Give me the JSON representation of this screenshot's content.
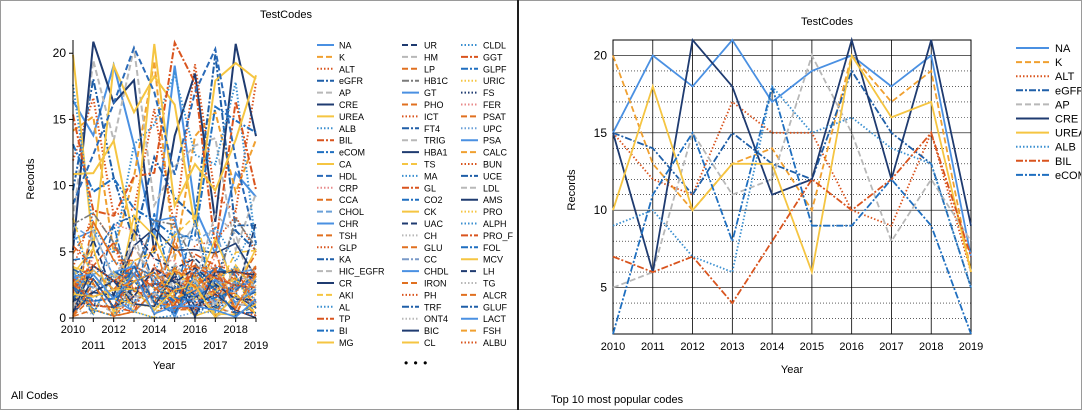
{
  "panels": {
    "left": {
      "caption": "All Codes",
      "more": "• • •"
    },
    "right": {
      "caption": "Top 10 most popular codes"
    }
  },
  "chart_data": [
    {
      "type": "line",
      "title": "TestCodes",
      "xlabel": "Year",
      "ylabel": "Records",
      "x": [
        2010,
        2011,
        2012,
        2013,
        2014,
        2015,
        2016,
        2017,
        2018,
        2019
      ],
      "ylim": [
        0,
        21
      ],
      "yticks": [
        0,
        5,
        10,
        15,
        20
      ],
      "grid": false,
      "legend_placement": "right",
      "legend": [
        {
          "name": "NA",
          "color": "#4a90e2",
          "dash": "solid"
        },
        {
          "name": "K",
          "color": "#f0a030",
          "dash": "dash"
        },
        {
          "name": "ALT",
          "color": "#d9541e",
          "dash": "dot"
        },
        {
          "name": "eGFR",
          "color": "#1f5fa8",
          "dash": "dashdot"
        },
        {
          "name": "AP",
          "color": "#b8b8b8",
          "dash": "dash"
        },
        {
          "name": "CRE",
          "color": "#1f3b70",
          "dash": "solid"
        },
        {
          "name": "UREA",
          "color": "#f5c542",
          "dash": "solid"
        },
        {
          "name": "ALB",
          "color": "#3a8fd0",
          "dash": "dot"
        },
        {
          "name": "BIL",
          "color": "#d9541e",
          "dash": "dashdot"
        },
        {
          "name": "eCOM",
          "color": "#1f6fc0",
          "dash": "dashdot"
        },
        {
          "name": "CA",
          "color": "#f5c542",
          "dash": "solid"
        },
        {
          "name": "HDL",
          "color": "#2a6ab8",
          "dash": "dash"
        },
        {
          "name": "CRP",
          "color": "#e88a8a",
          "dash": "dot"
        },
        {
          "name": "CCA",
          "color": "#e07020",
          "dash": "dash"
        },
        {
          "name": "CHOL",
          "color": "#6aa0d8",
          "dash": "dash"
        },
        {
          "name": "CHR",
          "color": "#4a90e2",
          "dash": "solid"
        },
        {
          "name": "TSH",
          "color": "#e07020",
          "dash": "dash"
        },
        {
          "name": "GLP",
          "color": "#d9541e",
          "dash": "dot"
        },
        {
          "name": "KA",
          "color": "#1f5fa8",
          "dash": "dashdot"
        },
        {
          "name": "HIC_EGFR",
          "color": "#b8b8b8",
          "dash": "dash"
        },
        {
          "name": "CR",
          "color": "#1f3b70",
          "dash": "solid"
        },
        {
          "name": "AKI",
          "color": "#f5c542",
          "dash": "dash"
        },
        {
          "name": "AL",
          "color": "#3a8fd0",
          "dash": "dot"
        },
        {
          "name": "TP",
          "color": "#d9541e",
          "dash": "dashdot"
        },
        {
          "name": "BI",
          "color": "#1f6fc0",
          "dash": "dashdot"
        },
        {
          "name": "MG",
          "color": "#f5c542",
          "dash": "solid"
        },
        {
          "name": "UR",
          "color": "#1f3b70",
          "dash": "dash"
        },
        {
          "name": "HM",
          "color": "#b8b8b8",
          "dash": "dash"
        },
        {
          "name": "LP",
          "color": "#e07020",
          "dash": "dash"
        },
        {
          "name": "HB1C",
          "color": "#7a7a7a",
          "dash": "dashdot"
        },
        {
          "name": "GT",
          "color": "#4a90e2",
          "dash": "solid"
        },
        {
          "name": "PHO",
          "color": "#e07020",
          "dash": "dash"
        },
        {
          "name": "ICT",
          "color": "#d9541e",
          "dash": "dot"
        },
        {
          "name": "FT4",
          "color": "#1f5fa8",
          "dash": "dashdot"
        },
        {
          "name": "TRIG",
          "color": "#b8b8b8",
          "dash": "dash"
        },
        {
          "name": "HBA1",
          "color": "#1f3b70",
          "dash": "solid"
        },
        {
          "name": "TS",
          "color": "#f5c542",
          "dash": "dash"
        },
        {
          "name": "MA",
          "color": "#3a8fd0",
          "dash": "dot"
        },
        {
          "name": "GL",
          "color": "#d9541e",
          "dash": "dashdot"
        },
        {
          "name": "CO2",
          "color": "#1f6fc0",
          "dash": "dashdot"
        },
        {
          "name": "CK",
          "color": "#f5c542",
          "dash": "solid"
        },
        {
          "name": "UAC",
          "color": "#1f3b70",
          "dash": "dash"
        },
        {
          "name": "CH",
          "color": "#b8b8b8",
          "dash": "dot"
        },
        {
          "name": "GLU",
          "color": "#e07020",
          "dash": "dash"
        },
        {
          "name": "CC",
          "color": "#7a9ac8",
          "dash": "dashdot"
        },
        {
          "name": "CHDL",
          "color": "#4a90e2",
          "dash": "solid"
        },
        {
          "name": "IRON",
          "color": "#e07020",
          "dash": "dash"
        },
        {
          "name": "PH",
          "color": "#d9541e",
          "dash": "dot"
        },
        {
          "name": "TRF",
          "color": "#1f5fa8",
          "dash": "dashdot"
        },
        {
          "name": "ONT4",
          "color": "#b8b8b8",
          "dash": "dot"
        },
        {
          "name": "BIC",
          "color": "#1f3b70",
          "dash": "solid"
        },
        {
          "name": "CL",
          "color": "#f5c542",
          "dash": "solid"
        },
        {
          "name": "CLDL",
          "color": "#3a8fd0",
          "dash": "dot"
        },
        {
          "name": "GGT",
          "color": "#d9541e",
          "dash": "dashdot"
        },
        {
          "name": "GLPF",
          "color": "#1f6fc0",
          "dash": "dashdot"
        },
        {
          "name": "URIC",
          "color": "#f5c542",
          "dash": "dot"
        },
        {
          "name": "FS",
          "color": "#1f3b70",
          "dash": "dot"
        },
        {
          "name": "FER",
          "color": "#e88a8a",
          "dash": "dot"
        },
        {
          "name": "PSAT",
          "color": "#e07020",
          "dash": "dash"
        },
        {
          "name": "UPC",
          "color": "#6aa0d8",
          "dash": "dot"
        },
        {
          "name": "PSA",
          "color": "#4a90e2",
          "dash": "solid"
        },
        {
          "name": "CALC",
          "color": "#f0a030",
          "dash": "dash"
        },
        {
          "name": "BUN",
          "color": "#d9541e",
          "dash": "dot"
        },
        {
          "name": "UCE",
          "color": "#1f5fa8",
          "dash": "dashdot"
        },
        {
          "name": "LDL",
          "color": "#b8b8b8",
          "dash": "dash"
        },
        {
          "name": "AMS",
          "color": "#1f3b70",
          "dash": "solid"
        },
        {
          "name": "PRO",
          "color": "#f5c542",
          "dash": "dot"
        },
        {
          "name": "ALPH",
          "color": "#3a8fd0",
          "dash": "dot"
        },
        {
          "name": "PRO_F",
          "color": "#d9541e",
          "dash": "dashdot"
        },
        {
          "name": "FOL",
          "color": "#1f6fc0",
          "dash": "dashdot"
        },
        {
          "name": "MCV",
          "color": "#f5c542",
          "dash": "solid"
        },
        {
          "name": "LH",
          "color": "#1f3b70",
          "dash": "dash"
        },
        {
          "name": "TG",
          "color": "#b8b8b8",
          "dash": "dot"
        },
        {
          "name": "ALCR",
          "color": "#e07020",
          "dash": "dash"
        },
        {
          "name": "GLUF",
          "color": "#1f5fa8",
          "dash": "dashdot"
        },
        {
          "name": "LACT",
          "color": "#4a90e2",
          "dash": "solid"
        },
        {
          "name": "FSH",
          "color": "#f0a030",
          "dash": "dash"
        },
        {
          "name": "ALBU",
          "color": "#d9541e",
          "dash": "dot"
        }
      ]
    },
    {
      "type": "line",
      "title": "TestCodes",
      "xlabel": "Year",
      "ylabel": "Records",
      "x": [
        2010,
        2011,
        2012,
        2013,
        2014,
        2015,
        2016,
        2017,
        2018,
        2019
      ],
      "ylim": [
        2,
        21
      ],
      "yticks": [
        5,
        10,
        15,
        20
      ],
      "grid": true,
      "legend_placement": "right",
      "series": [
        {
          "name": "NA",
          "color": "#4a90e2",
          "dash": "solid",
          "values": [
            15,
            20,
            18,
            21,
            17,
            19,
            20,
            18,
            20,
            7
          ]
        },
        {
          "name": "K",
          "color": "#f0a030",
          "dash": "dash",
          "values": [
            20,
            13,
            10,
            13,
            14,
            10,
            20,
            17,
            19,
            6
          ]
        },
        {
          "name": "ALT",
          "color": "#d9541e",
          "dash": "dot",
          "values": [
            15,
            12,
            11,
            17,
            15,
            15,
            10,
            9,
            15,
            6
          ]
        },
        {
          "name": "eGFR",
          "color": "#1f5fa8",
          "dash": "dashdot",
          "values": [
            15,
            14,
            11,
            15,
            13,
            12,
            19,
            15,
            13,
            5
          ]
        },
        {
          "name": "AP",
          "color": "#b8b8b8",
          "dash": "dash",
          "values": [
            5,
            6,
            15,
            11,
            12,
            20,
            15,
            8,
            12,
            8
          ]
        },
        {
          "name": "CRE",
          "color": "#1f3b70",
          "dash": "solid",
          "values": [
            15,
            6,
            21,
            18,
            11,
            12,
            21,
            12,
            21,
            9
          ]
        },
        {
          "name": "UREA",
          "color": "#f5c542",
          "dash": "solid",
          "values": [
            10,
            18,
            10,
            13,
            13,
            6,
            20,
            16,
            17,
            6
          ]
        },
        {
          "name": "ALB",
          "color": "#3a8fd0",
          "dash": "dot",
          "values": [
            9,
            10,
            7,
            6,
            18,
            15,
            16,
            14,
            13,
            5
          ]
        },
        {
          "name": "BIL",
          "color": "#d9541e",
          "dash": "dashdot",
          "values": [
            7,
            6,
            7,
            4,
            8,
            12,
            10,
            12,
            15,
            7
          ]
        },
        {
          "name": "eCOM",
          "color": "#1f6fc0",
          "dash": "dashdot",
          "values": [
            2,
            11,
            15,
            8,
            18,
            9,
            9,
            12,
            9,
            2
          ]
        }
      ]
    }
  ]
}
